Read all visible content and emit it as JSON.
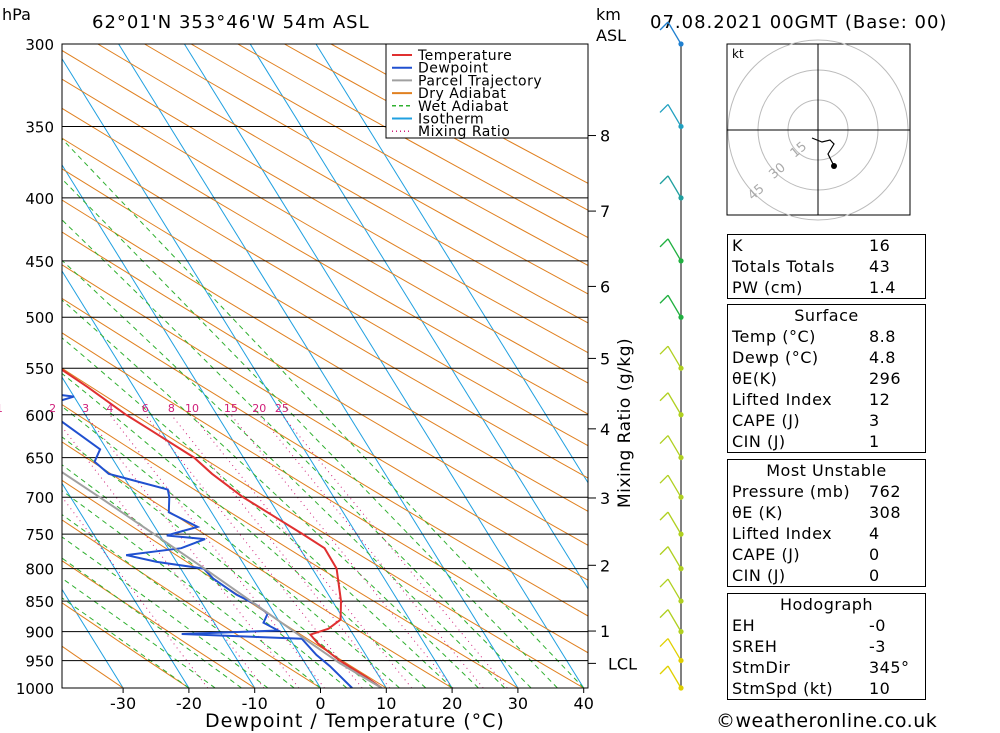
{
  "header": {
    "location": "62°01'N  353°46'W  54m  ASL",
    "datetime": "07.08.2021  00GMT  (Base: 00)",
    "hpa_label": "hPa",
    "km_label": "km",
    "asl_label": "ASL"
  },
  "footer": {
    "copyright": "©weatheronline.co.uk"
  },
  "legend": [
    {
      "name": "Temperature",
      "color": "#e03030",
      "style": "solid"
    },
    {
      "name": "Dewpoint",
      "color": "#2050d0",
      "style": "solid"
    },
    {
      "name": "Parcel Trajectory",
      "color": "#a0a0a0",
      "style": "solid"
    },
    {
      "name": "Dry Adiabat",
      "color": "#e08020",
      "style": "solid"
    },
    {
      "name": "Wet Adiabat",
      "color": "#30b030",
      "style": "dash"
    },
    {
      "name": "Isotherm",
      "color": "#20a0e0",
      "style": "solid"
    },
    {
      "name": "Mixing Ratio",
      "color": "#d0207a",
      "style": "dot"
    }
  ],
  "chart_data": {
    "type": "line",
    "chart_kind": "skew-T log-p sounding",
    "xlabel": "Dewpoint / Temperature (°C)",
    "ylabel_left": "hPa",
    "ylabel_right": "Mixing Ratio (g/kg)",
    "x_ticks": [
      -30,
      -20,
      -10,
      0,
      10,
      20,
      30,
      40
    ],
    "p_ticks": [
      300,
      350,
      400,
      450,
      500,
      550,
      600,
      650,
      700,
      750,
      800,
      850,
      900,
      950,
      1000
    ],
    "height_km_ticks": [
      {
        "label": "8",
        "p": 356
      },
      {
        "label": "7",
        "p": 410
      },
      {
        "label": "6",
        "p": 472
      },
      {
        "label": "5",
        "p": 540
      },
      {
        "label": "4",
        "p": 616
      },
      {
        "label": "3",
        "p": 701
      },
      {
        "label": "2",
        "p": 795
      },
      {
        "label": "1",
        "p": 899
      },
      {
        "label": "LCL",
        "p": 955
      }
    ],
    "mixing_ratio_labels": [
      "1",
      "2",
      "3",
      "4",
      "6",
      "8",
      "10",
      "15",
      "20",
      "25"
    ],
    "series": [
      {
        "name": "Temperature",
        "points": [
          [
            1000,
            9.3
          ],
          [
            980,
            8.0
          ],
          [
            950,
            5.5
          ],
          [
            920,
            3.8
          ],
          [
            905,
            3.5
          ],
          [
            895,
            6.8
          ],
          [
            880,
            9.5
          ],
          [
            850,
            11.3
          ],
          [
            800,
            13.7
          ],
          [
            770,
            13.8
          ],
          [
            750,
            11.8
          ],
          [
            720,
            8.5
          ],
          [
            700,
            6.2
          ],
          [
            670,
            3.7
          ],
          [
            650,
            2.5
          ],
          [
            620,
            -1.2
          ],
          [
            600,
            -3.8
          ],
          [
            570,
            -7.0
          ],
          [
            550,
            -9.5
          ],
          [
            520,
            -13.0
          ],
          [
            500,
            -15.0
          ],
          [
            480,
            -17.5
          ],
          [
            450,
            -21.5
          ],
          [
            420,
            -26.5
          ],
          [
            400,
            -30.0
          ],
          [
            370,
            -35.5
          ],
          [
            350,
            -40.0
          ],
          [
            320,
            -46.5
          ],
          [
            300,
            -50.5
          ]
        ]
      },
      {
        "name": "Dewpoint",
        "points": [
          [
            1000,
            4.8
          ],
          [
            960,
            3.5
          ],
          [
            940,
            2.5
          ],
          [
            912,
            1.8
          ],
          [
            904,
            -16.0
          ],
          [
            898,
            -1.0
          ],
          [
            885,
            -2.5
          ],
          [
            870,
            -1.0
          ],
          [
            855,
            -2.0
          ],
          [
            840,
            -4.0
          ],
          [
            815,
            -6.0
          ],
          [
            800,
            -6.5
          ],
          [
            790,
            -13.0
          ],
          [
            780,
            -17.0
          ],
          [
            770,
            -8.0
          ],
          [
            757,
            -3.5
          ],
          [
            752,
            -9.0
          ],
          [
            740,
            -3.5
          ],
          [
            720,
            -6.5
          ],
          [
            700,
            -5.0
          ],
          [
            690,
            -4.5
          ],
          [
            670,
            -12.0
          ],
          [
            655,
            -13.0
          ],
          [
            640,
            -11.0
          ],
          [
            600,
            -15.0
          ],
          [
            590,
            -15.5
          ],
          [
            580,
            -10.0
          ],
          [
            570,
            -21.0
          ],
          [
            560,
            -17.0
          ],
          [
            530,
            -17.0
          ],
          [
            522,
            -38.0
          ],
          [
            505,
            -30.0
          ],
          [
            500,
            -22.0
          ],
          [
            480,
            -44.0
          ],
          [
            465,
            -30.0
          ],
          [
            455,
            -26.0
          ],
          [
            450,
            -30.0
          ],
          [
            430,
            -31.0
          ],
          [
            400,
            -33.0
          ],
          [
            360,
            -46.0
          ],
          [
            340,
            -46.0
          ],
          [
            320,
            -48.0
          ],
          [
            310,
            -47.0
          ],
          [
            300,
            -52.0
          ]
        ]
      },
      {
        "name": "Parcel Trajectory",
        "points": [
          [
            1000,
            9.3
          ],
          [
            955,
            5.3
          ],
          [
            900,
            1.3
          ],
          [
            850,
            -2.4
          ],
          [
            800,
            -6.4
          ],
          [
            750,
            -10.8
          ],
          [
            700,
            -15.6
          ],
          [
            650,
            -20.9
          ],
          [
            600,
            -26.8
          ],
          [
            550,
            -33.2
          ],
          [
            500,
            -40.3
          ],
          [
            450,
            -48.1
          ],
          [
            400,
            -56.5
          ],
          [
            350,
            -66.0
          ],
          [
            320,
            -72.5
          ]
        ]
      }
    ],
    "hodograph": {
      "unit_label": "kt",
      "ring_labels": [
        "15",
        "30",
        "45"
      ],
      "points_kt": [
        [
          -3,
          -4
        ],
        [
          2,
          -6
        ],
        [
          6,
          -5
        ],
        [
          8,
          -7
        ],
        [
          5,
          -12
        ],
        [
          8,
          -18
        ]
      ]
    }
  },
  "wind_barbs": {
    "levels_hpa": [
      1000,
      950,
      900,
      850,
      800,
      750,
      700,
      650,
      600,
      550,
      500,
      450,
      400,
      350,
      300
    ],
    "colors": [
      "#e0d000",
      "#e0d000",
      "#b0d020",
      "#b0d020",
      "#b0d020",
      "#b0d020",
      "#b0d020",
      "#b0d020",
      "#b0d020",
      "#b0d020",
      "#20b040",
      "#20b040",
      "#20a0a0",
      "#20a0c0",
      "#2080d0"
    ]
  },
  "indices_table_1": [
    {
      "label": "K",
      "value": "16"
    },
    {
      "label": "Totals Totals",
      "value": "43"
    },
    {
      "label": "PW (cm)",
      "value": "1.4"
    }
  ],
  "surface": {
    "title": "Surface",
    "rows": [
      {
        "label": "Temp (°C)",
        "value": "8.8"
      },
      {
        "label": "Dewp (°C)",
        "value": "4.8"
      },
      {
        "label": "θE(K)",
        "value": "296"
      },
      {
        "label": "Lifted Index",
        "value": "12"
      },
      {
        "label": "CAPE (J)",
        "value": "3"
      },
      {
        "label": "CIN (J)",
        "value": "1"
      }
    ]
  },
  "most_unstable": {
    "title": "Most Unstable",
    "rows": [
      {
        "label": "Pressure (mb)",
        "value": "762"
      },
      {
        "label": "θE (K)",
        "value": "308"
      },
      {
        "label": "Lifted Index",
        "value": "4"
      },
      {
        "label": "CAPE (J)",
        "value": "0"
      },
      {
        "label": "CIN (J)",
        "value": "0"
      }
    ]
  },
  "hodograph_table": {
    "title": "Hodograph",
    "rows": [
      {
        "label": "EH",
        "value": "-0"
      },
      {
        "label": "SREH",
        "value": "-3"
      },
      {
        "label": "StmDir",
        "value": "345°"
      },
      {
        "label": "StmSpd (kt)",
        "value": "10"
      }
    ]
  }
}
